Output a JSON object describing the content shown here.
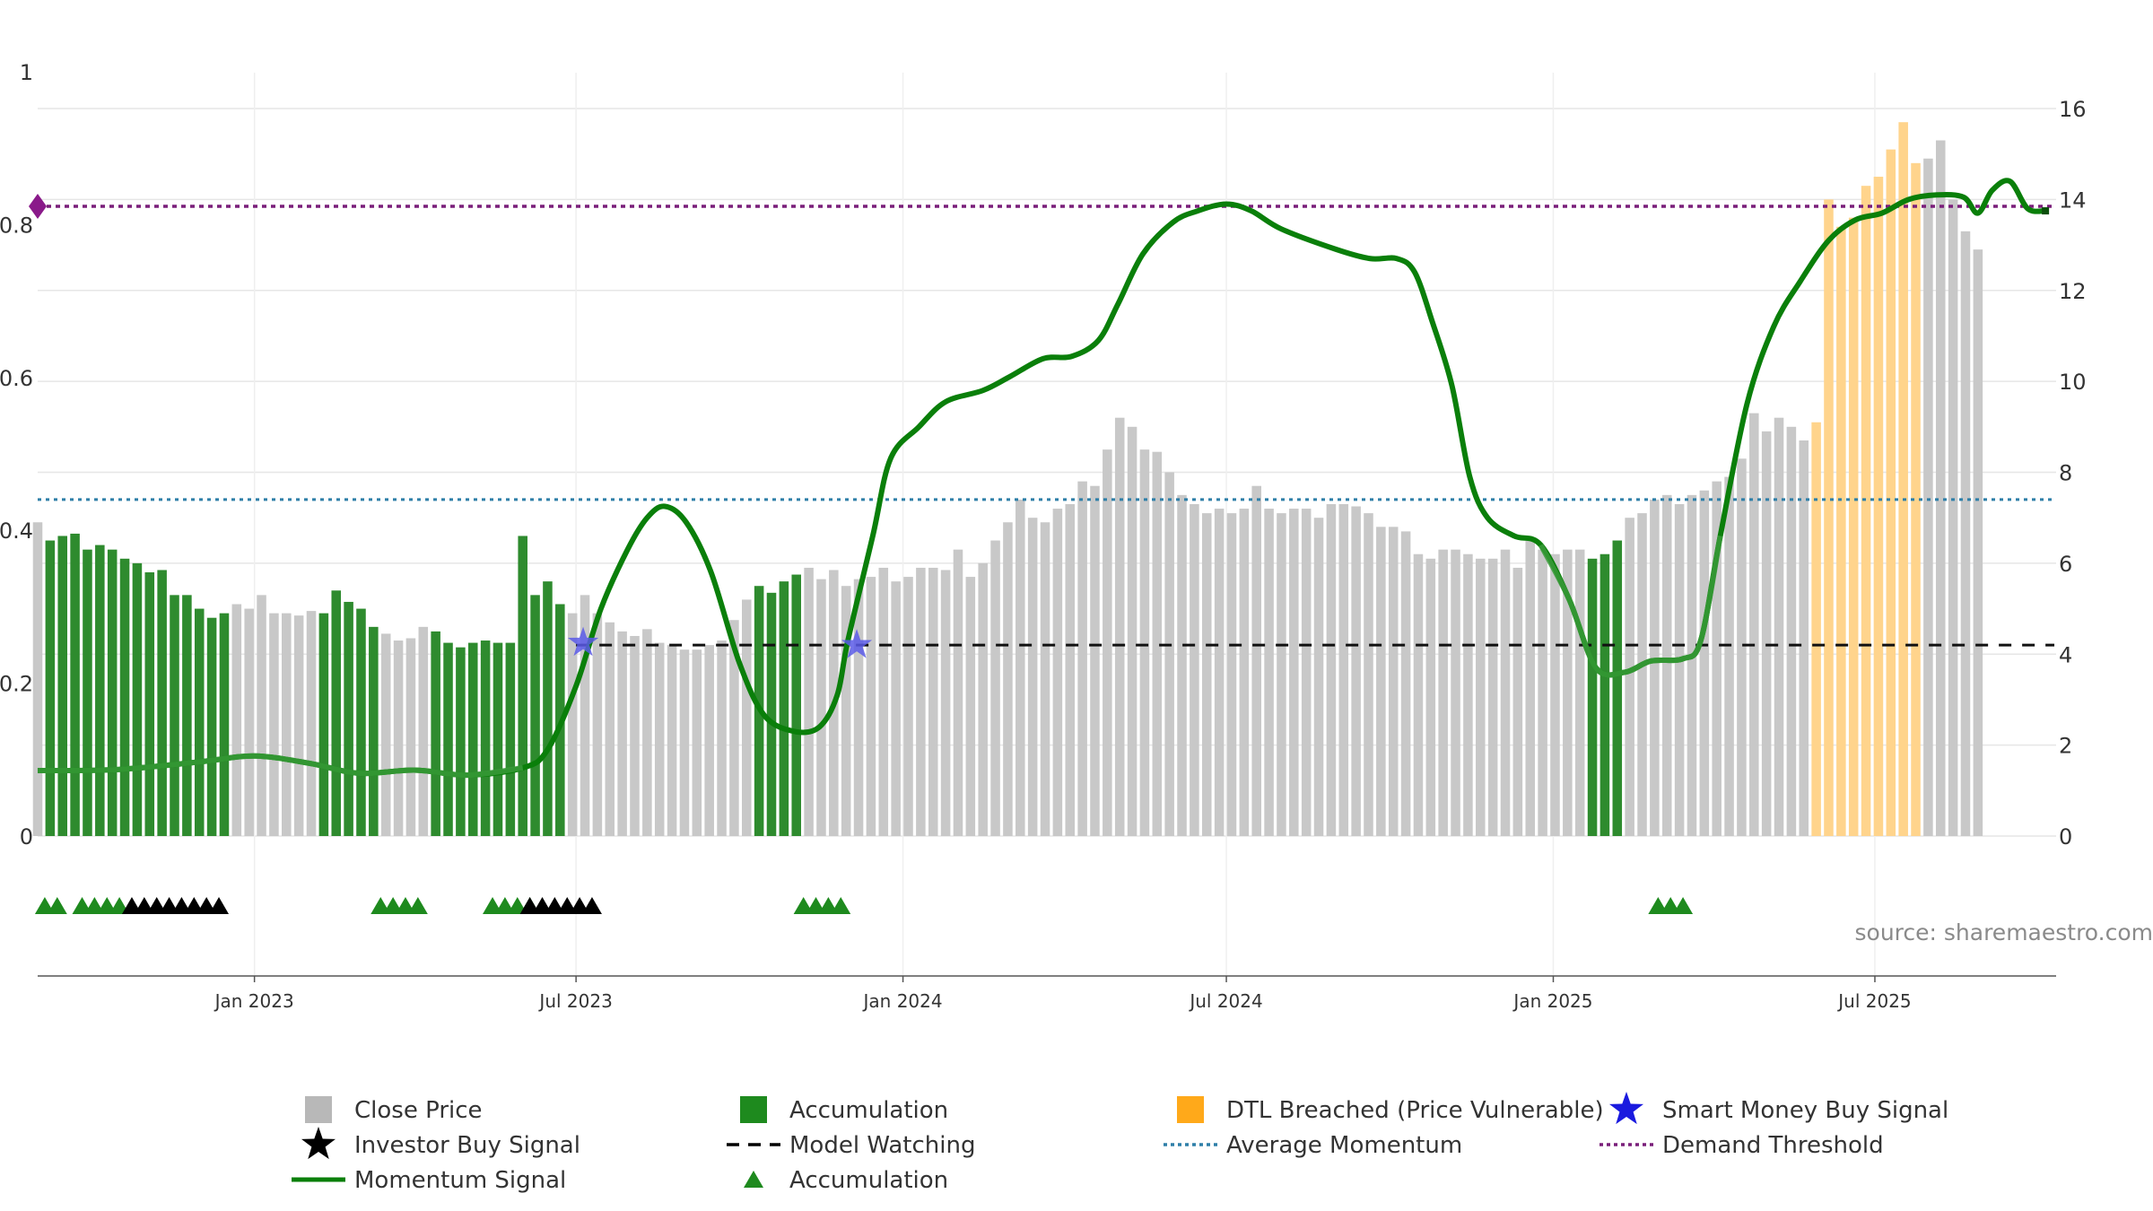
{
  "chart_data": {
    "type": "bar",
    "source_note": "source: sharemaestro.com",
    "left_axis": {
      "ticks": [
        "0",
        "0.2",
        "0.4",
        "0.6",
        "0.8",
        "1"
      ],
      "ylim": [
        0,
        1
      ]
    },
    "right_axis": {
      "ticks": [
        "0",
        "2",
        "4",
        "6",
        "8",
        "10",
        "12",
        "14",
        "16"
      ],
      "ylim": [
        0,
        16
      ]
    },
    "x_axis": {
      "start": "2022-09-01",
      "end": "2025-10-11",
      "ticks": [
        {
          "label": "Jan 2023",
          "date": "2023-01-01"
        },
        {
          "label": "Jul 2023",
          "date": "2023-07-01"
        },
        {
          "label": "Jan 2024",
          "date": "2024-01-01"
        },
        {
          "label": "Jul 2024",
          "date": "2024-07-01"
        },
        {
          "label": "Jan 2025",
          "date": "2025-01-01"
        },
        {
          "label": "Jul 2025",
          "date": "2025-07-01"
        }
      ]
    },
    "bar_start_week": "2022-09-01",
    "bar_interval_days": 7,
    "close_price": [
      6.9,
      6.5,
      6.6,
      6.65,
      6.3,
      6.4,
      6.3,
      6.1,
      6.0,
      5.8,
      5.85,
      5.3,
      5.3,
      5.0,
      4.8,
      4.9,
      5.1,
      5.0,
      5.3,
      4.9,
      4.9,
      4.85,
      4.95,
      4.9,
      5.4,
      5.15,
      5.0,
      4.6,
      4.45,
      4.3,
      4.35,
      4.6,
      4.5,
      4.25,
      4.15,
      4.25,
      4.3,
      4.25,
      4.25,
      6.6,
      5.3,
      5.6,
      5.1,
      4.9,
      5.3,
      4.9,
      4.7,
      4.5,
      4.4,
      4.55,
      4.25,
      4.2,
      4.1,
      4.1,
      4.2,
      4.3,
      4.75,
      5.2,
      5.5,
      5.35,
      5.6,
      5.75,
      5.9,
      5.65,
      5.85,
      5.5,
      5.65,
      5.7,
      5.9,
      5.6,
      5.7,
      5.9,
      5.9,
      5.85,
      6.3,
      5.7,
      6.0,
      6.5,
      6.9,
      7.4,
      7.0,
      6.9,
      7.2,
      7.3,
      7.8,
      7.7,
      8.5,
      9.2,
      9.0,
      8.5,
      8.45,
      8.0,
      7.5,
      7.3,
      7.1,
      7.2,
      7.1,
      7.2,
      7.7,
      7.2,
      7.1,
      7.2,
      7.2,
      7.0,
      7.3,
      7.3,
      7.25,
      7.1,
      6.8,
      6.8,
      6.7,
      6.2,
      6.1,
      6.3,
      6.3,
      6.2,
      6.1,
      6.1,
      6.3,
      5.9,
      6.5,
      6.3,
      6.2,
      6.3,
      6.3,
      6.1,
      6.2,
      6.5,
      7.0,
      7.1,
      7.4,
      7.5,
      7.3,
      7.5,
      7.6,
      7.8,
      7.9,
      8.3,
      9.3,
      8.9,
      9.2,
      9.0,
      8.7,
      9.1,
      14.0,
      13.4,
      13.6,
      14.3,
      14.5,
      15.1,
      15.7,
      14.8,
      14.9,
      15.3,
      14.0,
      13.3,
      12.9
    ],
    "accumulation_ranges": [
      [
        1,
        15
      ],
      [
        23,
        27
      ],
      [
        32,
        42
      ],
      [
        58,
        61
      ],
      [
        125,
        127
      ]
    ],
    "dtl_breached_range": [
      143,
      151
    ],
    "momentum_signal": [
      [
        "2022-09-01",
        1.44
      ],
      [
        "2022-10-15",
        1.46
      ],
      [
        "2022-12-01",
        1.63
      ],
      [
        "2023-01-01",
        1.76
      ],
      [
        "2023-02-01",
        1.6
      ],
      [
        "2023-03-01",
        1.38
      ],
      [
        "2023-04-01",
        1.45
      ],
      [
        "2023-05-01",
        1.34
      ],
      [
        "2023-06-01",
        1.5
      ],
      [
        "2023-06-15",
        1.9
      ],
      [
        "2023-07-01",
        3.3
      ],
      [
        "2023-07-15",
        5.0
      ],
      [
        "2023-07-30",
        6.3
      ],
      [
        "2023-08-10",
        7.0
      ],
      [
        "2023-08-20",
        7.25
      ],
      [
        "2023-09-01",
        6.9
      ],
      [
        "2023-09-15",
        5.8
      ],
      [
        "2023-10-01",
        3.8
      ],
      [
        "2023-10-15",
        2.65
      ],
      [
        "2023-11-01",
        2.3
      ],
      [
        "2023-11-15",
        2.4
      ],
      [
        "2023-11-25",
        3.1
      ],
      [
        "2023-12-01",
        4.3
      ],
      [
        "2023-12-15",
        6.6
      ],
      [
        "2023-12-25",
        8.3
      ],
      [
        "2024-01-10",
        9.0
      ],
      [
        "2024-01-25",
        9.55
      ],
      [
        "2024-02-15",
        9.8
      ],
      [
        "2024-03-01",
        10.1
      ],
      [
        "2024-03-20",
        10.5
      ],
      [
        "2024-04-05",
        10.55
      ],
      [
        "2024-04-20",
        10.9
      ],
      [
        "2024-05-01",
        11.7
      ],
      [
        "2024-05-15",
        12.8
      ],
      [
        "2024-06-01",
        13.5
      ],
      [
        "2024-06-15",
        13.75
      ],
      [
        "2024-07-01",
        13.9
      ],
      [
        "2024-07-15",
        13.75
      ],
      [
        "2024-08-01",
        13.35
      ],
      [
        "2024-09-01",
        12.9
      ],
      [
        "2024-09-20",
        12.7
      ],
      [
        "2024-10-05",
        12.7
      ],
      [
        "2024-10-15",
        12.4
      ],
      [
        "2024-10-25",
        11.3
      ],
      [
        "2024-11-05",
        9.9
      ],
      [
        "2024-11-15",
        7.9
      ],
      [
        "2024-11-25",
        7.0
      ],
      [
        "2024-12-10",
        6.6
      ],
      [
        "2024-12-25",
        6.4
      ],
      [
        "2025-01-10",
        5.2
      ],
      [
        "2025-01-25",
        3.7
      ],
      [
        "2025-02-10",
        3.6
      ],
      [
        "2025-02-25",
        3.85
      ],
      [
        "2025-03-15",
        3.9
      ],
      [
        "2025-03-25",
        4.3
      ],
      [
        "2025-04-05",
        6.6
      ],
      [
        "2025-04-20",
        9.5
      ],
      [
        "2025-05-05",
        11.2
      ],
      [
        "2025-05-20",
        12.2
      ],
      [
        "2025-06-05",
        13.1
      ],
      [
        "2025-06-20",
        13.55
      ],
      [
        "2025-07-05",
        13.7
      ],
      [
        "2025-07-20",
        14.0
      ],
      [
        "2025-08-05",
        14.1
      ],
      [
        "2025-08-20",
        14.05
      ],
      [
        "2025-08-28",
        13.7
      ],
      [
        "2025-09-05",
        14.2
      ],
      [
        "2025-09-15",
        14.4
      ],
      [
        "2025-09-25",
        13.8
      ],
      [
        "2025-10-05",
        13.75
      ]
    ],
    "momentum_highlight_ranges": [
      [
        "2022-09-01",
        "2023-06-12"
      ],
      [
        "2024-12-20",
        "2025-04-12"
      ]
    ],
    "model_watching": {
      "value": 4.2,
      "start": "2023-07-01",
      "end": "2025-10-10"
    },
    "average_momentum": 7.4,
    "demand_threshold": 13.85,
    "smart_money_buy_signals": [
      [
        "2023-07-05",
        4.25
      ],
      [
        "2023-12-06",
        4.2
      ]
    ],
    "green_triangles": [
      "2022-09-05",
      "2022-09-12",
      "2022-09-26",
      "2022-10-03",
      "2022-10-10",
      "2022-10-17",
      "2023-03-13",
      "2023-03-20",
      "2023-03-27",
      "2023-04-03",
      "2023-05-15",
      "2023-05-22",
      "2023-05-29",
      "2023-06-05",
      "2023-11-06",
      "2023-11-13",
      "2023-11-20",
      "2023-11-27",
      "2025-03-01",
      "2025-03-08",
      "2025-03-15"
    ],
    "black_triangles": [
      "2022-10-24",
      "2022-10-31",
      "2022-11-07",
      "2022-11-14",
      "2022-11-21",
      "2022-11-28",
      "2022-12-05",
      "2022-12-12",
      "2023-06-05",
      "2023-06-12",
      "2023-06-19",
      "2023-06-26",
      "2023-07-03",
      "2023-07-10"
    ],
    "colors": {
      "close_price": "#c8c8c8",
      "accumulation": "#2e8b2e",
      "dtl": "#ffd48c",
      "momentum": "#0a7f0a",
      "momentum_light": "#3a9a3a",
      "model_watching": "#111111",
      "average_momentum": "#2e7fa8",
      "demand_threshold": "#7a1f7a",
      "smart_money": "#1a1adf",
      "grid": "#e6e6e6"
    },
    "legend": [
      {
        "marker": "square-gray",
        "label": "Close Price"
      },
      {
        "marker": "square-green",
        "label": "Accumulation"
      },
      {
        "marker": "square-orange",
        "label": "DTL Breached (Price Vulnerable)"
      },
      {
        "marker": "star-blue",
        "label": "Smart Money Buy Signal"
      },
      {
        "marker": "star-black",
        "label": "Investor Buy Signal"
      },
      {
        "marker": "dash-black",
        "label": "Model Watching"
      },
      {
        "marker": "dot-teal",
        "label": "Average Momentum"
      },
      {
        "marker": "dot-purple",
        "label": "Demand Threshold"
      },
      {
        "marker": "line-green",
        "label": "Momentum Signal"
      },
      {
        "marker": "triangle-green",
        "label": "Accumulation"
      }
    ]
  }
}
